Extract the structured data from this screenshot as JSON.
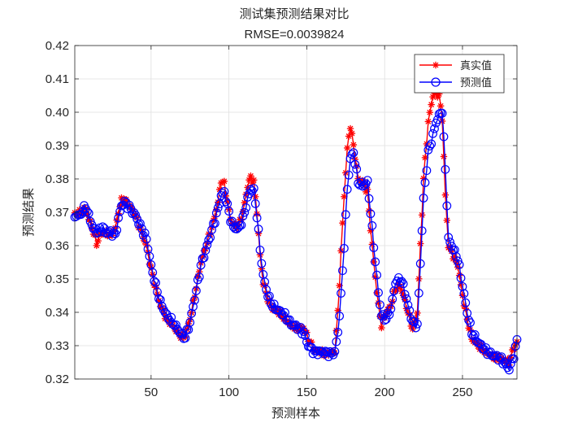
{
  "chart_data": {
    "type": "line",
    "title": "测试集预测结果对比",
    "subtitle": "RMSE=0.0039824",
    "xlabel": "预测样本",
    "ylabel": "预测结果",
    "xlim": [
      1,
      285
    ],
    "ylim": [
      0.32,
      0.42
    ],
    "xticks": [
      50,
      100,
      150,
      200,
      250
    ],
    "yticks": [
      0.32,
      0.33,
      0.34,
      0.35,
      0.36,
      0.37,
      0.38,
      0.39,
      0.4,
      0.41,
      0.42
    ],
    "grid": true,
    "legend_position": "top-right",
    "colors": {
      "true": "#ff0000",
      "pred": "#0000ff"
    },
    "series": [
      {
        "name": "真实值",
        "marker": "asterisk",
        "key_points": [
          [
            1,
            0.3695
          ],
          [
            5,
            0.37
          ],
          [
            8,
            0.3712
          ],
          [
            10,
            0.368
          ],
          [
            13,
            0.364
          ],
          [
            15,
            0.3605
          ],
          [
            17,
            0.363
          ],
          [
            20,
            0.364
          ],
          [
            24,
            0.363
          ],
          [
            27,
            0.365
          ],
          [
            29,
            0.37
          ],
          [
            31,
            0.3735
          ],
          [
            33,
            0.3738
          ],
          [
            36,
            0.372
          ],
          [
            40,
            0.369
          ],
          [
            43,
            0.365
          ],
          [
            47,
            0.36
          ],
          [
            50,
            0.353
          ],
          [
            53,
            0.347
          ],
          [
            56,
            0.342
          ],
          [
            60,
            0.338
          ],
          [
            64,
            0.336
          ],
          [
            67,
            0.334
          ],
          [
            70,
            0.3325
          ],
          [
            72,
            0.333
          ],
          [
            75,
            0.338
          ],
          [
            78,
            0.345
          ],
          [
            82,
            0.355
          ],
          [
            86,
            0.361
          ],
          [
            90,
            0.367
          ],
          [
            93,
            0.373
          ],
          [
            95,
            0.3795
          ],
          [
            97,
            0.3785
          ],
          [
            99,
            0.373
          ],
          [
            101,
            0.368
          ],
          [
            103,
            0.366
          ],
          [
            106,
            0.366
          ],
          [
            109,
            0.37
          ],
          [
            112,
            0.378
          ],
          [
            114,
            0.3805
          ],
          [
            116,
            0.379
          ],
          [
            118,
            0.37
          ],
          [
            120,
            0.357
          ],
          [
            122,
            0.349
          ],
          [
            125,
            0.344
          ],
          [
            128,
            0.341
          ],
          [
            132,
            0.34
          ],
          [
            136,
            0.338
          ],
          [
            140,
            0.336
          ],
          [
            144,
            0.335
          ],
          [
            148,
            0.3355
          ],
          [
            151,
            0.332
          ],
          [
            155,
            0.3285
          ],
          [
            160,
            0.328
          ],
          [
            165,
            0.3275
          ],
          [
            168,
            0.3285
          ],
          [
            170,
            0.34
          ],
          [
            172,
            0.358
          ],
          [
            174,
            0.375
          ],
          [
            176,
            0.389
          ],
          [
            178,
            0.396
          ],
          [
            180,
            0.39
          ],
          [
            183,
            0.38
          ],
          [
            186,
            0.379
          ],
          [
            189,
            0.376
          ],
          [
            191,
            0.365
          ],
          [
            193,
            0.355
          ],
          [
            196,
            0.342
          ],
          [
            198,
            0.336
          ],
          [
            201,
            0.34
          ],
          [
            204,
            0.342
          ],
          [
            207,
            0.347
          ],
          [
            210,
            0.348
          ],
          [
            212,
            0.345
          ],
          [
            215,
            0.34
          ],
          [
            218,
            0.335
          ],
          [
            221,
            0.34
          ],
          [
            223,
            0.36
          ],
          [
            225,
            0.38
          ],
          [
            228,
            0.397
          ],
          [
            231,
            0.405
          ],
          [
            233,
            0.406
          ],
          [
            235,
            0.405
          ],
          [
            237,
            0.398
          ],
          [
            239,
            0.375
          ],
          [
            241,
            0.36
          ],
          [
            244,
            0.357
          ],
          [
            247,
            0.354
          ],
          [
            250,
            0.345
          ],
          [
            253,
            0.338
          ],
          [
            256,
            0.332
          ],
          [
            260,
            0.33
          ],
          [
            265,
            0.328
          ],
          [
            270,
            0.3265
          ],
          [
            275,
            0.326
          ],
          [
            280,
            0.325
          ],
          [
            283,
            0.3295
          ],
          [
            285,
            0.331
          ]
        ]
      },
      {
        "name": "预测值",
        "marker": "circle",
        "key_points": [
          [
            1,
            0.369
          ],
          [
            4,
            0.369
          ],
          [
            8,
            0.3718
          ],
          [
            10,
            0.369
          ],
          [
            13,
            0.365
          ],
          [
            16,
            0.364
          ],
          [
            19,
            0.3655
          ],
          [
            21,
            0.364
          ],
          [
            24,
            0.364
          ],
          [
            27,
            0.363
          ],
          [
            29,
            0.368
          ],
          [
            31,
            0.372
          ],
          [
            33,
            0.373
          ],
          [
            36,
            0.3715
          ],
          [
            40,
            0.369
          ],
          [
            43,
            0.366
          ],
          [
            47,
            0.362
          ],
          [
            50,
            0.354
          ],
          [
            53,
            0.348
          ],
          [
            56,
            0.343
          ],
          [
            60,
            0.339
          ],
          [
            64,
            0.337
          ],
          [
            67,
            0.335
          ],
          [
            70,
            0.333
          ],
          [
            72,
            0.3325
          ],
          [
            75,
            0.337
          ],
          [
            78,
            0.344
          ],
          [
            82,
            0.354
          ],
          [
            86,
            0.36
          ],
          [
            90,
            0.366
          ],
          [
            93,
            0.371
          ],
          [
            95,
            0.375
          ],
          [
            97,
            0.376
          ],
          [
            99,
            0.372
          ],
          [
            101,
            0.368
          ],
          [
            103,
            0.3655
          ],
          [
            106,
            0.365
          ],
          [
            109,
            0.368
          ],
          [
            112,
            0.374
          ],
          [
            114,
            0.377
          ],
          [
            116,
            0.3765
          ],
          [
            118,
            0.369
          ],
          [
            120,
            0.359
          ],
          [
            122,
            0.351
          ],
          [
            125,
            0.345
          ],
          [
            128,
            0.342
          ],
          [
            132,
            0.3405
          ],
          [
            136,
            0.339
          ],
          [
            140,
            0.3365
          ],
          [
            144,
            0.3355
          ],
          [
            148,
            0.334
          ],
          [
            151,
            0.33
          ],
          [
            155,
            0.328
          ],
          [
            160,
            0.3282
          ],
          [
            165,
            0.3275
          ],
          [
            168,
            0.328
          ],
          [
            170,
            0.334
          ],
          [
            172,
            0.345
          ],
          [
            174,
            0.36
          ],
          [
            176,
            0.377
          ],
          [
            178,
            0.386
          ],
          [
            180,
            0.388
          ],
          [
            183,
            0.379
          ],
          [
            186,
            0.378
          ],
          [
            189,
            0.379
          ],
          [
            191,
            0.37
          ],
          [
            193,
            0.36
          ],
          [
            196,
            0.346
          ],
          [
            198,
            0.339
          ],
          [
            201,
            0.338
          ],
          [
            204,
            0.341
          ],
          [
            207,
            0.349
          ],
          [
            210,
            0.35
          ],
          [
            212,
            0.348
          ],
          [
            215,
            0.342
          ],
          [
            218,
            0.337
          ],
          [
            221,
            0.336
          ],
          [
            223,
            0.355
          ],
          [
            225,
            0.374
          ],
          [
            228,
            0.388
          ],
          [
            231,
            0.393
          ],
          [
            233,
            0.397
          ],
          [
            235,
            0.399
          ],
          [
            237,
            0.4005
          ],
          [
            239,
            0.383
          ],
          [
            241,
            0.362
          ],
          [
            244,
            0.359
          ],
          [
            247,
            0.356
          ],
          [
            250,
            0.348
          ],
          [
            253,
            0.34
          ],
          [
            256,
            0.334
          ],
          [
            260,
            0.331
          ],
          [
            265,
            0.3285
          ],
          [
            270,
            0.327
          ],
          [
            275,
            0.326
          ],
          [
            280,
            0.323
          ],
          [
            283,
            0.327
          ],
          [
            285,
            0.3315
          ]
        ]
      }
    ]
  }
}
